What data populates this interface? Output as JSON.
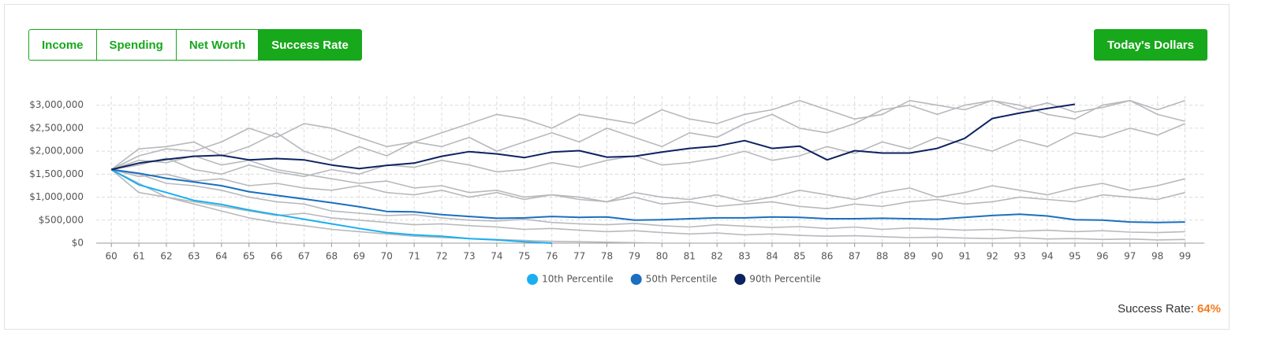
{
  "tabs": [
    "Income",
    "Spending",
    "Net Worth",
    "Success Rate"
  ],
  "active_tab": 3,
  "dollars_button": "Today's Dollars",
  "success_rate_label": "Success Rate:",
  "success_rate": "64%",
  "chart_data": {
    "type": "line",
    "x": [
      60,
      61,
      62,
      63,
      64,
      65,
      66,
      67,
      68,
      69,
      70,
      71,
      72,
      73,
      74,
      75,
      76,
      77,
      78,
      79,
      80,
      81,
      82,
      83,
      84,
      85,
      86,
      87,
      88,
      89,
      90,
      91,
      92,
      93,
      94,
      95,
      96,
      97,
      98,
      99
    ],
    "xlim": [
      59.45,
      99.7
    ],
    "xticks": [
      60,
      61,
      62,
      63,
      64,
      65,
      66,
      67,
      68,
      69,
      70,
      71,
      72,
      73,
      74,
      75,
      76,
      77,
      78,
      79,
      80,
      81,
      82,
      83,
      84,
      85,
      86,
      87,
      88,
      89,
      90,
      91,
      92,
      93,
      94,
      95,
      96,
      97,
      98,
      99
    ],
    "ylim": [
      0,
      3200000
    ],
    "yticks": [
      {
        "value": 0,
        "label": "$0"
      },
      {
        "value": 500000,
        "label": "$500,000"
      },
      {
        "value": 1000000,
        "label": "$1,000,000"
      },
      {
        "value": 1500000,
        "label": "$1,500,000"
      },
      {
        "value": 2000000,
        "label": "$2,000,000"
      },
      {
        "value": 2500000,
        "label": "$2,500,000"
      },
      {
        "value": 3000000,
        "label": "$3,000,000"
      }
    ],
    "grid": true,
    "simulation_color": "#b7b9bd",
    "simulations": [
      [
        1600000,
        1900000,
        2050000,
        2000000,
        2200000,
        2500000,
        2300000,
        2600000,
        2500000,
        2300000,
        2100000,
        2200000,
        2400000,
        2600000,
        2800000,
        2700000,
        2500000,
        2800000,
        2700000,
        2600000,
        2900000,
        2700000,
        2600000,
        2800000,
        2900000,
        3100000,
        2900000,
        2700000,
        2800000,
        3100000,
        3000000,
        2900000,
        3100000,
        3000000,
        2800000,
        2700000,
        3000000,
        3100000,
        2900000,
        3100000
      ],
      [
        1600000,
        1300000,
        1000000,
        850000,
        700000,
        550000,
        450000,
        380000,
        300000,
        250000,
        200000,
        150000,
        120000,
        100000,
        80000,
        60000,
        40000,
        30000,
        20000,
        10000,
        0,
        null,
        null,
        null,
        null,
        null,
        null,
        null,
        null,
        null,
        null,
        null,
        null,
        null,
        null,
        null,
        null,
        null,
        null,
        null
      ],
      [
        1600000,
        1450000,
        1500000,
        1350000,
        1400000,
        1250000,
        1300000,
        1200000,
        1150000,
        1250000,
        1100000,
        1050000,
        1150000,
        1000000,
        1100000,
        950000,
        1050000,
        1000000,
        900000,
        1100000,
        1000000,
        950000,
        1050000,
        900000,
        1000000,
        1150000,
        1050000,
        950000,
        1100000,
        1200000,
        1000000,
        1100000,
        1250000,
        1150000,
        1050000,
        1200000,
        1300000,
        1150000,
        1250000,
        1400000
      ],
      [
        1600000,
        1700000,
        1850000,
        1600000,
        1500000,
        1700000,
        1550000,
        1450000,
        1600000,
        1500000,
        1700000,
        1650000,
        1800000,
        1700000,
        1550000,
        1600000,
        1750000,
        1650000,
        1800000,
        1900000,
        1700000,
        1750000,
        1850000,
        2000000,
        1800000,
        1900000,
        2100000,
        1950000,
        2200000,
        2050000,
        2300000,
        2150000,
        2000000,
        2250000,
        2100000,
        2400000,
        2300000,
        2500000,
        2350000,
        2600000
      ],
      [
        1600000,
        1100000,
        1000000,
        900000,
        800000,
        700000,
        600000,
        650000,
        550000,
        500000,
        450000,
        400000,
        420000,
        380000,
        350000,
        300000,
        320000,
        280000,
        250000,
        270000,
        230000,
        200000,
        220000,
        180000,
        200000,
        170000,
        150000,
        160000,
        140000,
        120000,
        130000,
        110000,
        100000,
        120000,
        90000,
        100000,
        80000,
        90000,
        70000,
        80000
      ],
      [
        1600000,
        1800000,
        1750000,
        1900000,
        1700000,
        1800000,
        1600000,
        1500000,
        1400000,
        1300000,
        1350000,
        1200000,
        1250000,
        1100000,
        1150000,
        1000000,
        1050000,
        950000,
        900000,
        1000000,
        850000,
        900000,
        800000,
        850000,
        900000,
        800000,
        750000,
        850000,
        800000,
        900000,
        950000,
        850000,
        900000,
        1000000,
        950000,
        900000,
        1050000,
        1000000,
        950000,
        1100000
      ],
      [
        1600000,
        2050000,
        2100000,
        2200000,
        1900000,
        2100000,
        2400000,
        2000000,
        1800000,
        2100000,
        1900000,
        2200000,
        2100000,
        2300000,
        2000000,
        2200000,
        2400000,
        2200000,
        2500000,
        2300000,
        2100000,
        2400000,
        2300000,
        2600000,
        2800000,
        2500000,
        2400000,
        2600000,
        2900000,
        3000000,
        2800000,
        3000000,
        3100000,
        2900000,
        3050000,
        2850000,
        2950000,
        3100000,
        2800000,
        2650000
      ],
      [
        1600000,
        1500000,
        1300000,
        1250000,
        1150000,
        1000000,
        900000,
        850000,
        700000,
        650000,
        600000,
        620000,
        550000,
        500000,
        480000,
        520000,
        450000,
        420000,
        400000,
        430000,
        380000,
        350000,
        400000,
        370000,
        340000,
        360000,
        320000,
        350000,
        300000,
        330000,
        310000,
        280000,
        300000,
        260000,
        280000,
        250000,
        270000,
        240000,
        230000,
        250000
      ]
    ],
    "series": [
      {
        "name": "10th Percentile",
        "color": "#1aaff0",
        "values": [
          1600000,
          1270000,
          1100000,
          930000,
          840000,
          720000,
          620000,
          520000,
          420000,
          320000,
          230000,
          180000,
          150000,
          100000,
          70000,
          30000,
          0,
          null,
          null,
          null,
          null,
          null,
          null,
          null,
          null,
          null,
          null,
          null,
          null,
          null,
          null,
          null,
          null,
          null,
          null,
          null,
          null,
          null,
          null,
          null
        ]
      },
      {
        "name": "50th Percentile",
        "color": "#1a6fc0",
        "values": [
          1600000,
          1520000,
          1410000,
          1330000,
          1250000,
          1120000,
          1040000,
          960000,
          880000,
          790000,
          690000,
          680000,
          620000,
          580000,
          540000,
          550000,
          580000,
          560000,
          570000,
          500000,
          510000,
          530000,
          550000,
          550000,
          570000,
          560000,
          530000,
          530000,
          540000,
          530000,
          520000,
          560000,
          600000,
          630000,
          590000,
          510000,
          500000,
          460000,
          450000,
          460000
        ]
      },
      {
        "name": "90th Percentile",
        "color": "#0d2260",
        "values": [
          1600000,
          1740000,
          1820000,
          1890000,
          1910000,
          1810000,
          1840000,
          1810000,
          1700000,
          1620000,
          1690000,
          1740000,
          1890000,
          1990000,
          1940000,
          1860000,
          1980000,
          2010000,
          1870000,
          1890000,
          1980000,
          2060000,
          2110000,
          2230000,
          2060000,
          2110000,
          1810000,
          2010000,
          1960000,
          1960000,
          2060000,
          2280000,
          2710000,
          2830000,
          2930000,
          3020000,
          null,
          null,
          null,
          null
        ]
      }
    ]
  }
}
